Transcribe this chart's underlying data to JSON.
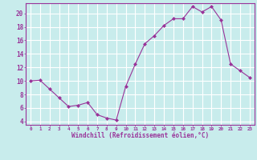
{
  "x": [
    0,
    1,
    2,
    3,
    4,
    5,
    6,
    7,
    8,
    9,
    10,
    11,
    12,
    13,
    14,
    15,
    16,
    17,
    18,
    19,
    20,
    21,
    22,
    23
  ],
  "y": [
    10.0,
    10.1,
    8.8,
    7.5,
    6.2,
    6.4,
    6.8,
    5.0,
    4.5,
    4.2,
    9.2,
    12.5,
    15.5,
    16.7,
    18.2,
    19.2,
    19.2,
    21.0,
    20.2,
    21.0,
    19.0,
    12.5,
    11.5,
    10.5
  ],
  "line_color": "#993399",
  "marker": "D",
  "marker_size": 2,
  "bg_color": "#c8ecec",
  "grid_color": "#ffffff",
  "xlabel": "Windchill (Refroidissement éolien,°C)",
  "xlabel_color": "#993399",
  "tick_color": "#993399",
  "ylim": [
    3.5,
    21.5
  ],
  "xlim": [
    -0.5,
    23.5
  ],
  "yticks": [
    4,
    6,
    8,
    10,
    12,
    14,
    16,
    18,
    20
  ],
  "xticks": [
    0,
    1,
    2,
    3,
    4,
    5,
    6,
    7,
    8,
    9,
    10,
    11,
    12,
    13,
    14,
    15,
    16,
    17,
    18,
    19,
    20,
    21,
    22,
    23
  ]
}
